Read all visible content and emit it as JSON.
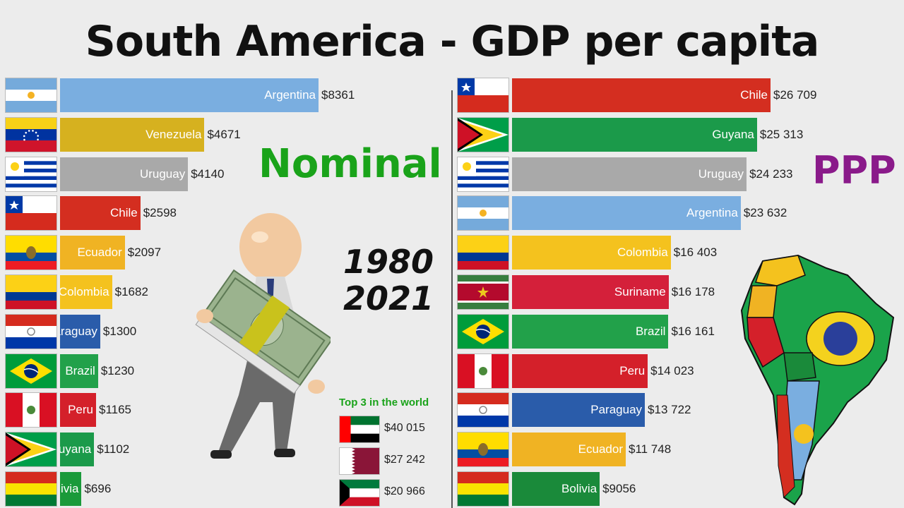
{
  "title": "South America - GDP per capita",
  "nominal_label": "Nominal",
  "ppp_label": "PPP",
  "years": {
    "start": "1980",
    "end": "2021"
  },
  "top3": {
    "title": "Top 3 in the world",
    "items": [
      {
        "flag": "uae",
        "value": "$40 015"
      },
      {
        "flag": "qatar",
        "value": "$27 242"
      },
      {
        "flag": "kuwait",
        "value": "$20 966"
      }
    ]
  },
  "chart_data": [
    {
      "type": "bar",
      "title": "Nominal",
      "orientation": "horizontal",
      "categories": [
        "Argentina",
        "Venezuela",
        "Uruguay",
        "Chile",
        "Ecuador",
        "Colombia",
        "Paraguay",
        "Brazil",
        "Peru",
        "Guyana",
        "Bolivia"
      ],
      "display_names": [
        "Argentina",
        "Venezuela",
        "Uruguay",
        "Chile",
        "Ecuador",
        "Colombia",
        "araguay",
        "Brazil",
        "Peru",
        "uyana",
        "ivia"
      ],
      "values": [
        8361,
        4671,
        4140,
        2598,
        2097,
        1682,
        1300,
        1230,
        1165,
        1102,
        696
      ],
      "value_labels": [
        "$8361",
        "$4671",
        "$4140",
        "$2598",
        "$2097",
        "$1682",
        "$1300",
        "$1230",
        "$1165",
        "$1102",
        "$696"
      ],
      "flags": [
        "argentina",
        "venezuela",
        "uruguay",
        "chile",
        "ecuador",
        "colombia",
        "paraguay",
        "brazil",
        "peru",
        "guyana",
        "bolivia"
      ],
      "colors": [
        "#7aaee0",
        "#d6b11f",
        "#a9a9a9",
        "#d42e20",
        "#f0b323",
        "#f4c21e",
        "#2a5caa",
        "#22a14a",
        "#d4202a",
        "#1b9a4a",
        "#1a9a3a"
      ]
    },
    {
      "type": "bar",
      "title": "PPP",
      "orientation": "horizontal",
      "categories": [
        "Chile",
        "Guyana",
        "Uruguay",
        "Argentina",
        "Colombia",
        "Suriname",
        "Brazil",
        "Peru",
        "Paraguay",
        "Ecuador",
        "Bolivia"
      ],
      "display_names": [
        "Chile",
        "Guyana",
        "Uruguay",
        "Argentina",
        "Colombia",
        "Suriname",
        "Brazil",
        "Peru",
        "Paraguay",
        "Ecuador",
        "Bolivia"
      ],
      "values": [
        26709,
        25313,
        24233,
        23632,
        16403,
        16178,
        16161,
        14023,
        13722,
        11748,
        9056
      ],
      "value_labels": [
        "$26 709",
        "$25 313",
        "$24 233",
        "$23 632",
        "$16 403",
        "$16 178",
        "$16 161",
        "$14 023",
        "$13 722",
        "$11 748",
        "$9056"
      ],
      "flags": [
        "chile",
        "guyana",
        "uruguay",
        "argentina",
        "colombia",
        "suriname",
        "brazil",
        "peru",
        "paraguay",
        "ecuador",
        "bolivia"
      ],
      "colors": [
        "#d42e20",
        "#1b9a4a",
        "#a9a9a9",
        "#7aaee0",
        "#f4c21e",
        "#d4203a",
        "#22a14a",
        "#d4202a",
        "#2a5caa",
        "#f0b323",
        "#1a8a3a"
      ]
    }
  ]
}
